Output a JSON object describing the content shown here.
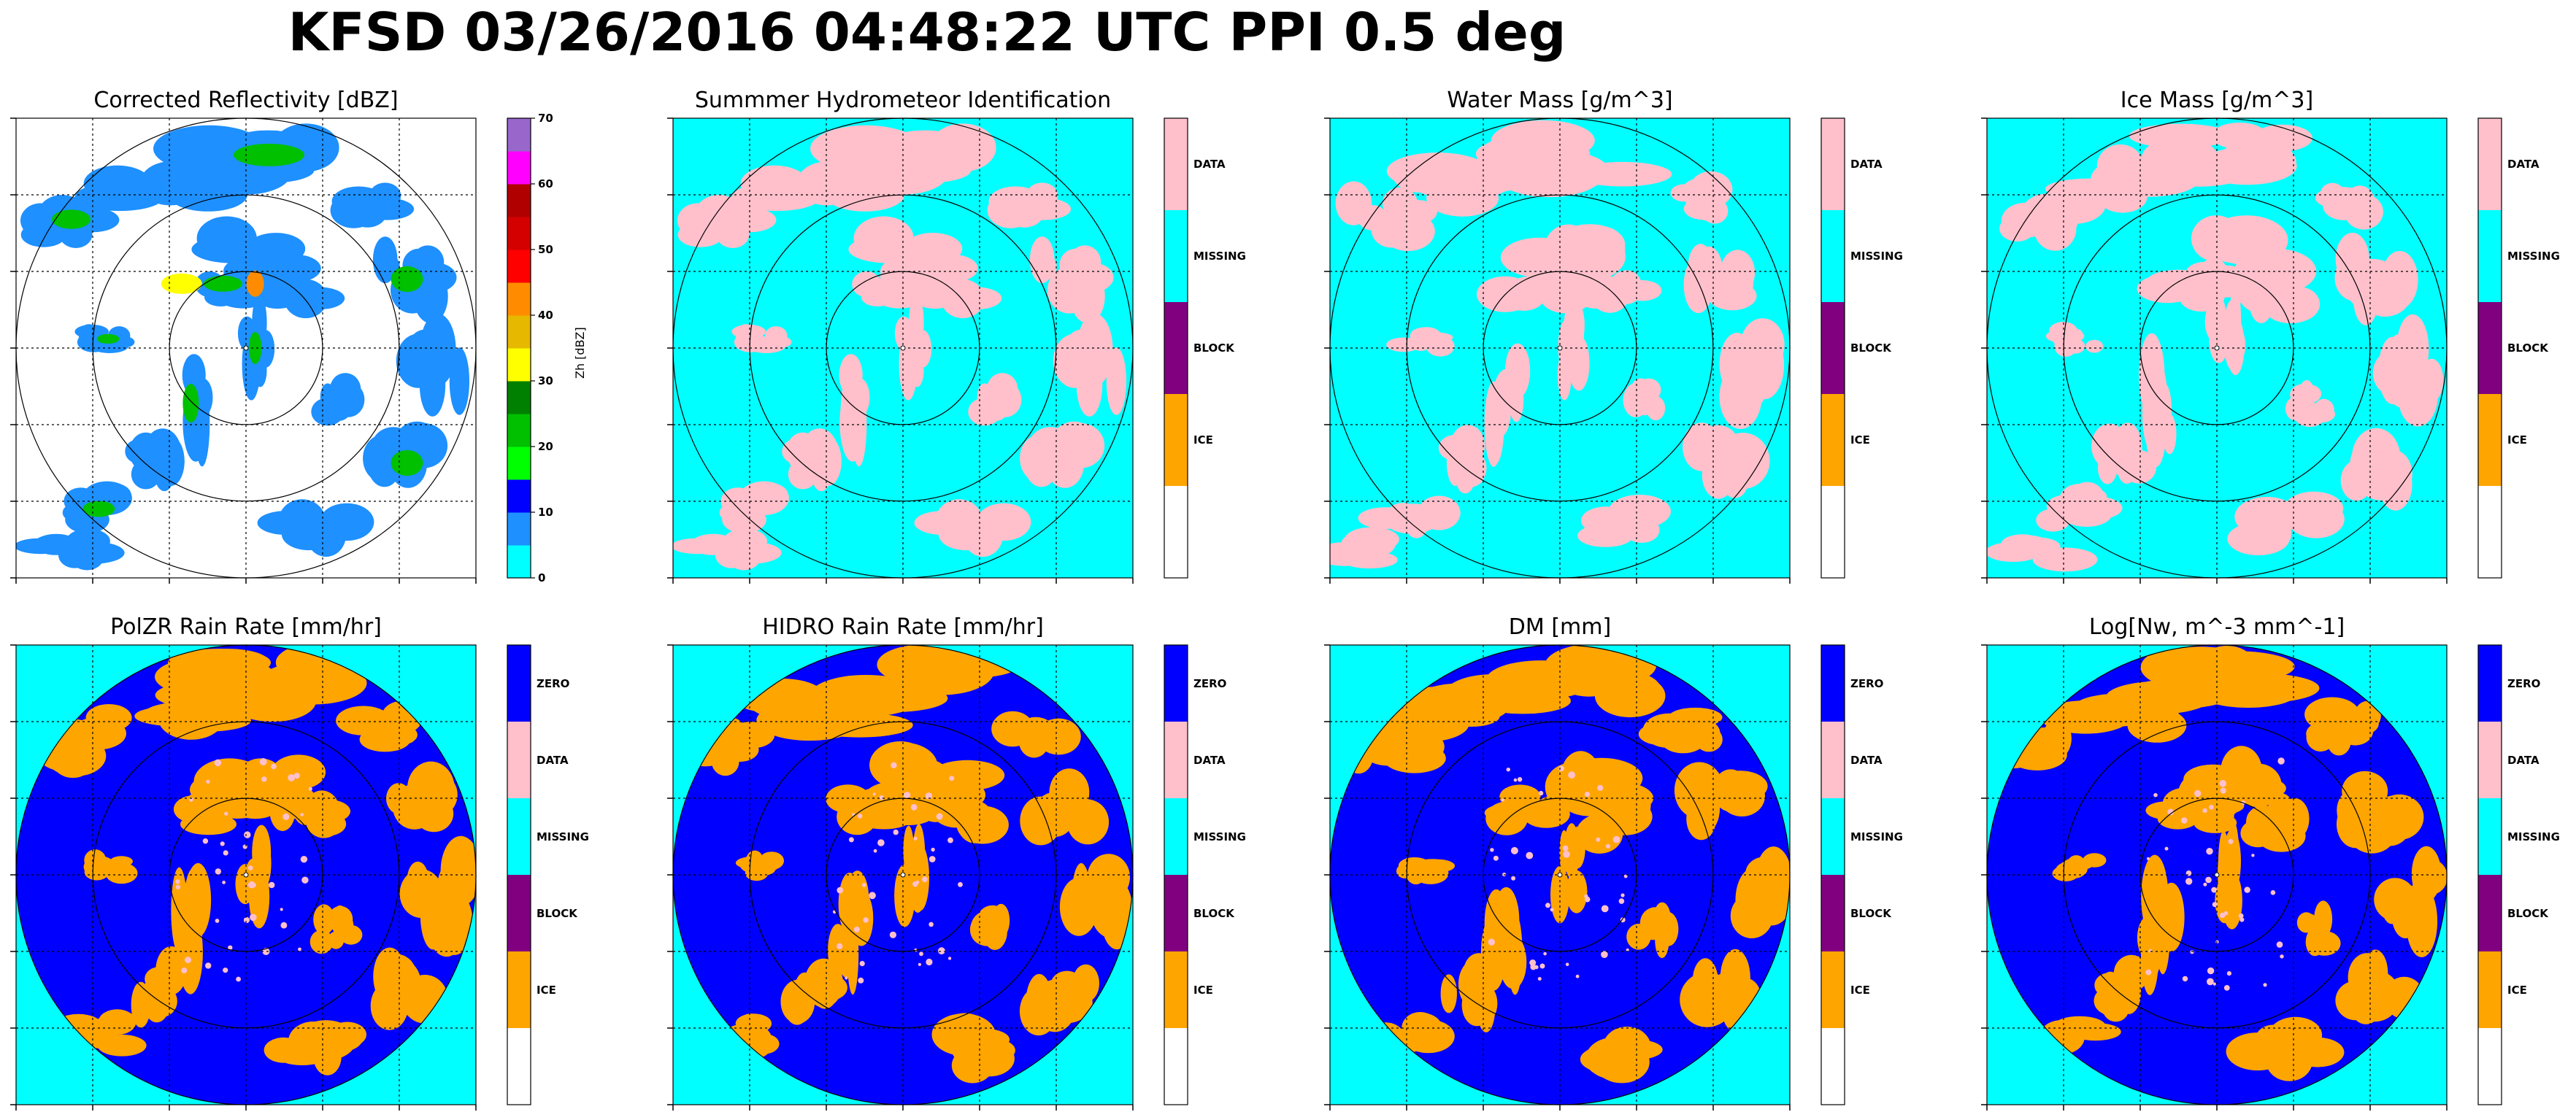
{
  "figure": {
    "title": "KFSD 03/26/2016 04:48:22 UTC PPI 0.5 deg"
  },
  "colors": {
    "cyan": "#00ffff",
    "pink": "#ffc0cb",
    "purple": "#800080",
    "orange": "#ffa500",
    "blue": "#0000ff",
    "white": "#ffffff",
    "green": "#00d000"
  },
  "chart_data": [
    {
      "type": "heatmap",
      "title": "Corrected Reflectivity [dBZ]",
      "colorbar": {
        "kind": "continuous",
        "label": "Zh [dBZ]",
        "ticks": [
          "0",
          "10",
          "20",
          "30",
          "40",
          "50",
          "60",
          "70"
        ],
        "colors": [
          "#00ffff",
          "#1e90ff",
          "#0000ff",
          "#00ff00",
          "#00c000",
          "#008000",
          "#ffff00",
          "#e6b800",
          "#ff8c00",
          "#ff0000",
          "#d40000",
          "#b00000",
          "#ff00ff",
          "#9966cc"
        ]
      }
    },
    {
      "type": "heatmap",
      "title": "Summmer Hydrometeor Identification",
      "colorbar": {
        "kind": "categorical",
        "labels": [
          "DATA",
          "MISSING",
          "BLOCK",
          "ICE"
        ],
        "colors": [
          "#ffc0cb",
          "#00ffff",
          "#800080",
          "#ffa500",
          "#ffffff"
        ]
      }
    },
    {
      "type": "heatmap",
      "title": "Water Mass [g/m^3]",
      "colorbar": {
        "kind": "categorical",
        "labels": [
          "DATA",
          "MISSING",
          "BLOCK",
          "ICE"
        ],
        "colors": [
          "#ffc0cb",
          "#00ffff",
          "#800080",
          "#ffa500",
          "#ffffff"
        ]
      }
    },
    {
      "type": "heatmap",
      "title": "Ice Mass [g/m^3]",
      "colorbar": {
        "kind": "categorical",
        "labels": [
          "DATA",
          "MISSING",
          "BLOCK",
          "ICE"
        ],
        "colors": [
          "#ffc0cb",
          "#00ffff",
          "#800080",
          "#ffa500",
          "#ffffff"
        ]
      }
    },
    {
      "type": "heatmap",
      "title": "PolZR Rain Rate [mm/hr]",
      "colorbar": {
        "kind": "categorical",
        "labels": [
          "ZERO",
          "DATA",
          "MISSING",
          "BLOCK",
          "ICE"
        ],
        "colors": [
          "#0000ff",
          "#ffc0cb",
          "#00ffff",
          "#800080",
          "#ffa500",
          "#ffffff"
        ]
      }
    },
    {
      "type": "heatmap",
      "title": "HIDRO Rain Rate [mm/hr]",
      "colorbar": {
        "kind": "categorical",
        "labels": [
          "ZERO",
          "DATA",
          "MISSING",
          "BLOCK",
          "ICE"
        ],
        "colors": [
          "#0000ff",
          "#ffc0cb",
          "#00ffff",
          "#800080",
          "#ffa500",
          "#ffffff"
        ]
      }
    },
    {
      "type": "heatmap",
      "title": "DM [mm]",
      "colorbar": {
        "kind": "categorical",
        "labels": [
          "ZERO",
          "DATA",
          "MISSING",
          "BLOCK",
          "ICE"
        ],
        "colors": [
          "#0000ff",
          "#ffc0cb",
          "#00ffff",
          "#800080",
          "#ffa500",
          "#ffffff"
        ]
      }
    },
    {
      "type": "heatmap",
      "title": "Log[Nw, m^-3 mm^-1]",
      "colorbar": {
        "kind": "categorical",
        "labels": [
          "ZERO",
          "DATA",
          "MISSING",
          "BLOCK",
          "ICE"
        ],
        "colors": [
          "#0000ff",
          "#ffc0cb",
          "#00ffff",
          "#800080",
          "#ffa500",
          "#ffffff"
        ]
      }
    }
  ]
}
